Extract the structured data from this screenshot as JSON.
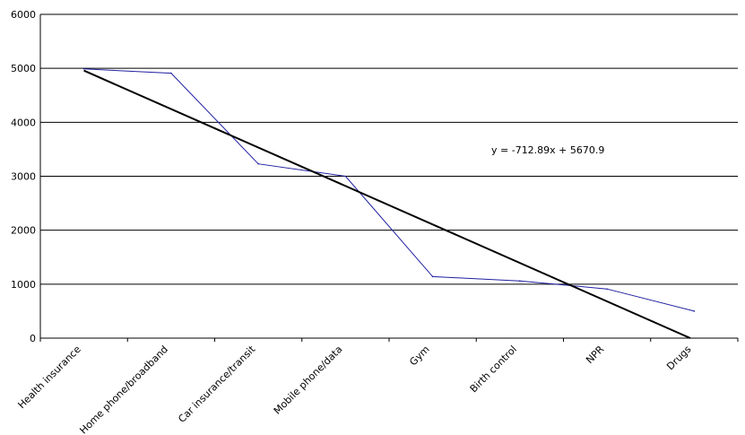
{
  "chart_data": {
    "type": "line",
    "title": "",
    "xlabel": "",
    "ylabel": "",
    "categories": [
      "Health insurance",
      "Home phone/broadband",
      "Car insurance/transit",
      "Mobile phone/data",
      "Gym",
      "Birth control",
      "NPR",
      "Drugs"
    ],
    "series": [
      {
        "values": [
          4990,
          4910,
          3230,
          3000,
          1140,
          1060,
          910,
          500
        ],
        "color": "#1f1fa0"
      }
    ],
    "trendline": {
      "slope": -712.89,
      "intercept": 5670.9,
      "label": "y = -712.89x + 5670.9",
      "color": "#000000"
    },
    "ylim": [
      0,
      6000
    ],
    "yticks": [
      "0",
      "1000",
      "2000",
      "3000",
      "4000",
      "5000",
      "6000"
    ],
    "grid": true,
    "legend": "none"
  }
}
